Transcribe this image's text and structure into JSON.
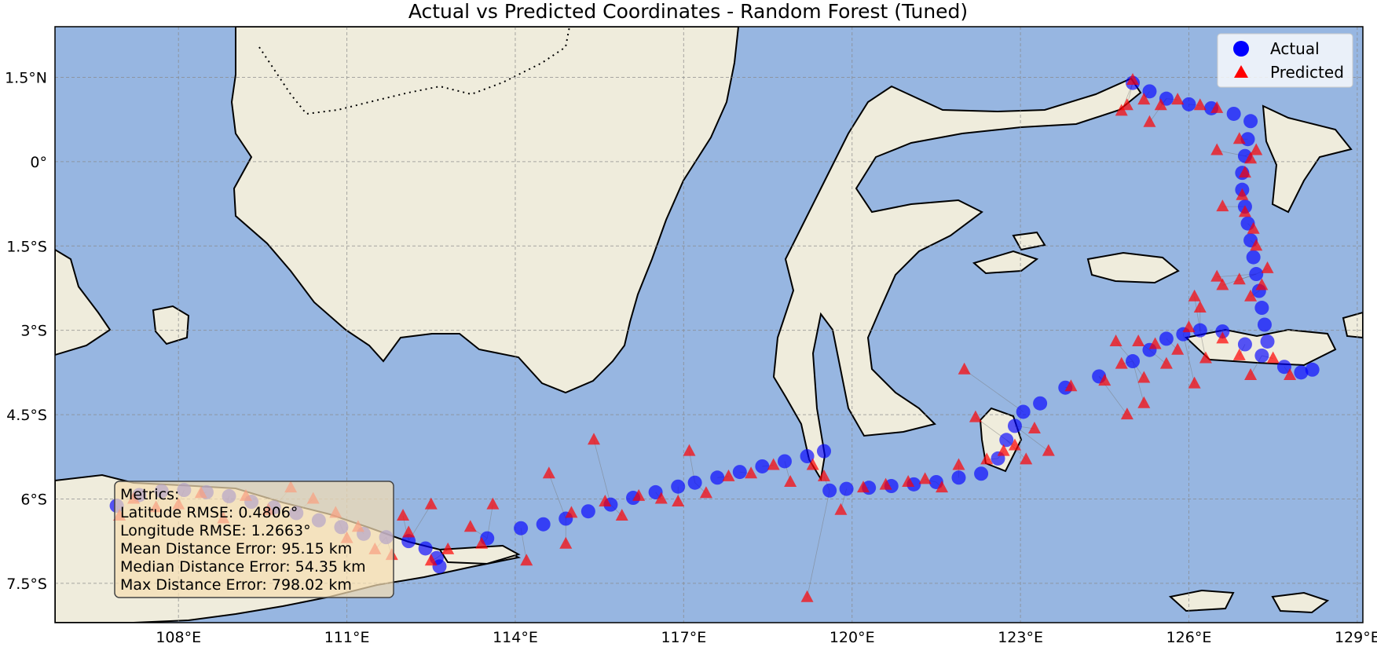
{
  "title": "Actual vs Predicted Coordinates - Random Forest (Tuned)",
  "colors": {
    "ocean": "#97b6e1",
    "land": "#efecdc",
    "actual": "#0000ff",
    "predicted": "#ff0000",
    "grid": "#888888"
  },
  "chart_data": {
    "type": "scatter",
    "xlim": [
      105.8,
      129.1
    ],
    "ylim": [
      -8.2,
      2.4
    ],
    "x_ticks": [
      108,
      111,
      114,
      117,
      120,
      123,
      126,
      129
    ],
    "y_ticks": [
      1.5,
      0,
      -1.5,
      -3,
      -4.5,
      -6,
      -7.5
    ],
    "x_tick_labels": [
      "108°E",
      "111°E",
      "114°E",
      "117°E",
      "120°E",
      "123°E",
      "126°E",
      "129°E"
    ],
    "y_tick_labels": [
      "1.5°N",
      "0°",
      "1.5°S",
      "3°S",
      "4.5°S",
      "6°S",
      "7.5°S"
    ],
    "grid": true,
    "legend_position": "top-right",
    "series": [
      {
        "name": "Actual",
        "marker": "circle",
        "points": [
          [
            106.9,
            -6.12
          ],
          [
            107.3,
            -5.93
          ],
          [
            107.7,
            -5.86
          ],
          [
            108.1,
            -5.84
          ],
          [
            108.5,
            -5.88
          ],
          [
            108.9,
            -5.95
          ],
          [
            109.3,
            -6.05
          ],
          [
            109.7,
            -6.15
          ],
          [
            110.1,
            -6.25
          ],
          [
            110.5,
            -6.38
          ],
          [
            110.9,
            -6.5
          ],
          [
            111.3,
            -6.62
          ],
          [
            111.7,
            -6.68
          ],
          [
            112.1,
            -6.75
          ],
          [
            112.4,
            -6.88
          ],
          [
            112.6,
            -7.05
          ],
          [
            112.65,
            -7.2
          ],
          [
            113.5,
            -6.7
          ],
          [
            114.1,
            -6.52
          ],
          [
            114.5,
            -6.45
          ],
          [
            114.9,
            -6.35
          ],
          [
            115.3,
            -6.22
          ],
          [
            115.7,
            -6.1
          ],
          [
            116.1,
            -5.98
          ],
          [
            116.5,
            -5.88
          ],
          [
            116.9,
            -5.78
          ],
          [
            117.2,
            -5.71
          ],
          [
            117.6,
            -5.62
          ],
          [
            118.0,
            -5.52
          ],
          [
            118.4,
            -5.42
          ],
          [
            118.8,
            -5.33
          ],
          [
            119.2,
            -5.24
          ],
          [
            119.5,
            -5.15
          ],
          [
            119.6,
            -5.85
          ],
          [
            119.9,
            -5.82
          ],
          [
            120.3,
            -5.8
          ],
          [
            120.7,
            -5.77
          ],
          [
            121.1,
            -5.74
          ],
          [
            121.5,
            -5.7
          ],
          [
            121.9,
            -5.62
          ],
          [
            122.3,
            -5.55
          ],
          [
            122.6,
            -5.28
          ],
          [
            122.75,
            -4.95
          ],
          [
            122.9,
            -4.7
          ],
          [
            123.05,
            -4.45
          ],
          [
            123.35,
            -4.3
          ],
          [
            123.8,
            -4.02
          ],
          [
            124.4,
            -3.82
          ],
          [
            125.0,
            -3.55
          ],
          [
            125.3,
            -3.35
          ],
          [
            125.6,
            -3.15
          ],
          [
            125.9,
            -3.07
          ],
          [
            126.2,
            -3.0
          ],
          [
            126.6,
            -3.02
          ],
          [
            127.0,
            -3.25
          ],
          [
            127.3,
            -3.45
          ],
          [
            127.7,
            -3.65
          ],
          [
            128.0,
            -3.75
          ],
          [
            128.2,
            -3.7
          ],
          [
            127.4,
            -3.2
          ],
          [
            127.35,
            -2.9
          ],
          [
            127.3,
            -2.6
          ],
          [
            127.25,
            -2.3
          ],
          [
            127.2,
            -2.0
          ],
          [
            127.15,
            -1.7
          ],
          [
            127.1,
            -1.4
          ],
          [
            127.05,
            -1.1
          ],
          [
            127.0,
            -0.8
          ],
          [
            126.95,
            -0.5
          ],
          [
            126.95,
            -0.2
          ],
          [
            127.0,
            0.1
          ],
          [
            127.05,
            0.4
          ],
          [
            127.1,
            0.72
          ],
          [
            126.8,
            0.85
          ],
          [
            126.4,
            0.95
          ],
          [
            126.0,
            1.02
          ],
          [
            125.6,
            1.12
          ],
          [
            125.3,
            1.25
          ],
          [
            125.0,
            1.4
          ]
        ]
      },
      {
        "name": "Predicted",
        "marker": "triangle",
        "points": [
          [
            106.95,
            -6.3
          ],
          [
            107.2,
            -6.0
          ],
          [
            107.6,
            -6.15
          ],
          [
            108.0,
            -6.1
          ],
          [
            108.4,
            -5.9
          ],
          [
            108.8,
            -6.35
          ],
          [
            109.2,
            -5.95
          ],
          [
            109.6,
            -6.2
          ],
          [
            110.0,
            -5.8
          ],
          [
            110.4,
            -6.0
          ],
          [
            110.8,
            -6.25
          ],
          [
            111.2,
            -6.5
          ],
          [
            111.5,
            -6.9
          ],
          [
            111.8,
            -7.0
          ],
          [
            112.1,
            -6.6
          ],
          [
            112.5,
            -7.1
          ],
          [
            112.8,
            -6.9
          ],
          [
            112.0,
            -6.3
          ],
          [
            112.5,
            -6.1
          ],
          [
            111.0,
            -6.7
          ],
          [
            113.2,
            -6.5
          ],
          [
            113.4,
            -6.8
          ],
          [
            113.6,
            -6.1
          ],
          [
            114.2,
            -7.1
          ],
          [
            114.6,
            -5.55
          ],
          [
            114.9,
            -6.8
          ],
          [
            115.0,
            -6.25
          ],
          [
            115.4,
            -4.95
          ],
          [
            115.6,
            -6.05
          ],
          [
            115.9,
            -6.3
          ],
          [
            116.2,
            -5.95
          ],
          [
            116.6,
            -6.0
          ],
          [
            116.9,
            -6.05
          ],
          [
            117.1,
            -5.15
          ],
          [
            117.4,
            -5.9
          ],
          [
            117.8,
            -5.6
          ],
          [
            118.2,
            -5.55
          ],
          [
            118.6,
            -5.4
          ],
          [
            118.9,
            -5.7
          ],
          [
            119.2,
            -7.75
          ],
          [
            119.3,
            -5.4
          ],
          [
            119.5,
            -5.6
          ],
          [
            119.8,
            -6.2
          ],
          [
            120.2,
            -5.8
          ],
          [
            120.6,
            -5.75
          ],
          [
            121.0,
            -5.7
          ],
          [
            121.3,
            -5.65
          ],
          [
            121.6,
            -5.8
          ],
          [
            121.9,
            -5.4
          ],
          [
            122.2,
            -4.55
          ],
          [
            122.4,
            -5.3
          ],
          [
            122.7,
            -5.15
          ],
          [
            122.9,
            -5.05
          ],
          [
            123.1,
            -5.3
          ],
          [
            123.25,
            -4.75
          ],
          [
            123.5,
            -5.15
          ],
          [
            123.9,
            -4.0
          ],
          [
            122.0,
            -3.7
          ],
          [
            124.5,
            -3.9
          ],
          [
            124.8,
            -3.6
          ],
          [
            125.1,
            -3.2
          ],
          [
            125.2,
            -3.85
          ],
          [
            125.4,
            -3.25
          ],
          [
            125.6,
            -3.6
          ],
          [
            125.8,
            -3.35
          ],
          [
            126.1,
            -3.95
          ],
          [
            126.3,
            -3.5
          ],
          [
            126.6,
            -3.15
          ],
          [
            126.9,
            -3.45
          ],
          [
            127.1,
            -3.8
          ],
          [
            127.5,
            -3.5
          ],
          [
            127.8,
            -3.8
          ],
          [
            124.9,
            -4.5
          ],
          [
            125.2,
            -4.3
          ],
          [
            124.7,
            -3.2
          ],
          [
            127.3,
            -2.2
          ],
          [
            127.4,
            -1.9
          ],
          [
            127.1,
            -2.4
          ],
          [
            126.9,
            -2.1
          ],
          [
            126.6,
            -2.2
          ],
          [
            126.1,
            -2.4
          ],
          [
            126.0,
            -2.95
          ],
          [
            126.2,
            -2.6
          ],
          [
            126.5,
            -2.05
          ],
          [
            127.2,
            -1.5
          ],
          [
            127.15,
            -1.2
          ],
          [
            127.0,
            -0.9
          ],
          [
            126.95,
            -0.6
          ],
          [
            127.0,
            -0.2
          ],
          [
            127.1,
            0.05
          ],
          [
            127.2,
            0.2
          ],
          [
            126.9,
            0.4
          ],
          [
            126.6,
            -0.8
          ],
          [
            126.5,
            0.2
          ],
          [
            126.5,
            0.95
          ],
          [
            126.2,
            1.0
          ],
          [
            125.8,
            1.1
          ],
          [
            125.5,
            1.0
          ],
          [
            125.2,
            1.1
          ],
          [
            125.0,
            1.45
          ],
          [
            124.8,
            0.9
          ],
          [
            124.9,
            1.0
          ],
          [
            125.3,
            0.7
          ]
        ]
      }
    ]
  },
  "legend": {
    "actual_label": "Actual",
    "predicted_label": "Predicted"
  },
  "metrics": {
    "header": "Metrics:",
    "latitude_rmse": "Latitude RMSE: 0.4806°",
    "longitude_rmse": "Longitude RMSE: 1.2663°",
    "mean_distance": "Mean Distance Error: 95.15 km",
    "median_distance": "Median Distance Error: 54.35 km",
    "max_distance": "Max Distance Error: 798.02 km"
  }
}
